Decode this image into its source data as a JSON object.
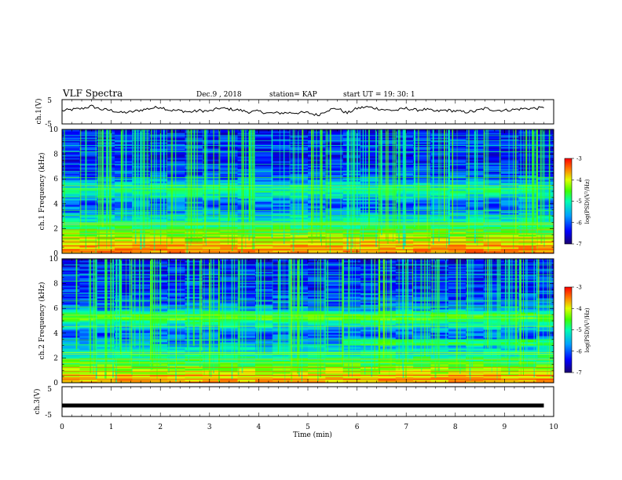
{
  "header": {
    "title": "VLF Spectra",
    "date": "Dec.9 , 2018",
    "station": "station= KAP",
    "start_ut": "start UT = 19: 30: 1"
  },
  "chart_data": [
    {
      "type": "line",
      "panel": "ch1-waveform",
      "ylabel": "ch.1(V)",
      "ylim": [
        -5,
        5
      ],
      "yticks": [
        "5",
        "-5"
      ],
      "xlim": [
        0,
        10
      ],
      "x": [
        0,
        0.2,
        0.4,
        0.6,
        0.8,
        1.0,
        1.2,
        1.4,
        1.6,
        1.8,
        2.0,
        2.2,
        2.4,
        2.6,
        2.8,
        3.0,
        3.2,
        3.4,
        3.6,
        3.8,
        4.0,
        4.2,
        4.4,
        4.6,
        4.8,
        5.0,
        5.2,
        5.4,
        5.6,
        5.8,
        6.0,
        6.2,
        6.4,
        6.6,
        6.8,
        7.0,
        7.2,
        7.4,
        7.6,
        7.8,
        8.0,
        8.2,
        8.4,
        8.6,
        8.8,
        9.0,
        9.2,
        9.4,
        9.6,
        9.8
      ],
      "y": [
        0.4,
        0.9,
        1.3,
        2.3,
        1.0,
        0.6,
        -0.4,
        -0.1,
        0.7,
        1.4,
        2.0,
        0.6,
        0.5,
        -0.1,
        0.5,
        0.2,
        1.5,
        1.1,
        0.7,
        -0.1,
        0.2,
        -0.6,
        -0.5,
        -0.4,
        -0.4,
        -0.4,
        -1.4,
        0.7,
        1.4,
        -0.6,
        1.4,
        2.0,
        1.4,
        0.7,
        0.6,
        1.4,
        0.7,
        1.0,
        0.1,
        0.7,
        0.3,
        -0.1,
        0.2,
        1.4,
        0.7,
        0.6,
        0.9,
        1.3,
        1.4,
        1.6
      ]
    },
    {
      "type": "heatmap",
      "panel": "ch1-spectrogram",
      "ylabel": "ch.1 Frequency (kHz)",
      "ylim": [
        0,
        10
      ],
      "yticks": [
        "0",
        "2",
        "4",
        "6",
        "8",
        "10"
      ],
      "xlim": [
        0,
        10
      ],
      "colorbar_label": "log(PSD)(V²/Hz)",
      "colorbar_range": [
        -7,
        -3
      ],
      "colorbar_ticks": [
        "-3",
        "-4",
        "-5",
        "-6",
        "-7"
      ],
      "frequency_profile_khz": [
        0,
        0.5,
        1,
        1.5,
        2,
        2.5,
        3,
        3.5,
        4,
        4.5,
        5,
        5.5,
        6,
        6.5,
        7,
        7.5,
        8,
        8.5,
        9,
        9.5,
        10
      ],
      "frequency_profile_log_psd": [
        -3.6,
        -3.8,
        -4.2,
        -4.6,
        -4.9,
        -5.2,
        -5.6,
        -6.0,
        -6.1,
        -5.7,
        -5.2,
        -5.4,
        -6.0,
        -6.2,
        -6.3,
        -6.4,
        -6.4,
        -6.3,
        -6.3,
        -6.4,
        -6.5
      ]
    },
    {
      "type": "heatmap",
      "panel": "ch2-spectrogram",
      "ylabel": "ch.2 Frequency (kHz)",
      "ylim": [
        0,
        10
      ],
      "yticks": [
        "0",
        "2",
        "4",
        "6",
        "8",
        "10"
      ],
      "xlim": [
        0,
        10
      ],
      "colorbar_label": "log(PSD)(V²/Hz)",
      "colorbar_range": [
        -7,
        -3
      ],
      "colorbar_ticks": [
        "-3",
        "-4",
        "-5",
        "-6",
        "-7"
      ],
      "frequency_profile_khz": [
        0,
        0.5,
        1,
        1.5,
        2,
        2.5,
        3,
        3.5,
        4,
        4.5,
        5,
        5.5,
        6,
        6.5,
        7,
        7.5,
        8,
        8.5,
        9,
        9.5,
        10
      ],
      "frequency_profile_log_psd": [
        -3.7,
        -4.0,
        -4.4,
        -4.8,
        -5.1,
        -5.4,
        -5.7,
        -6.0,
        -6.1,
        -5.6,
        -5.1,
        -5.3,
        -5.9,
        -6.1,
        -6.2,
        -6.3,
        -6.3,
        -6.3,
        -6.4,
        -6.4,
        -6.5
      ]
    },
    {
      "type": "line",
      "panel": "ch3-waveform",
      "ylabel": "ch.3(V)",
      "ylim": [
        -5,
        5
      ],
      "yticks": [
        "5",
        "-5"
      ],
      "xlim": [
        0,
        10
      ],
      "x": [
        0,
        9.8
      ],
      "y": [
        -1.3,
        -1.3
      ]
    }
  ],
  "x_axis": {
    "label": "Time (min)",
    "ticks": [
      "0",
      "1",
      "2",
      "3",
      "4",
      "5",
      "6",
      "7",
      "8",
      "9",
      "10"
    ]
  },
  "colors": {
    "line": "#000000",
    "colormap": [
      "#1a0070",
      "#0000ff",
      "#00a0ff",
      "#00ffb0",
      "#40ff00",
      "#e0ff00",
      "#ff8000",
      "#ff0000"
    ]
  }
}
